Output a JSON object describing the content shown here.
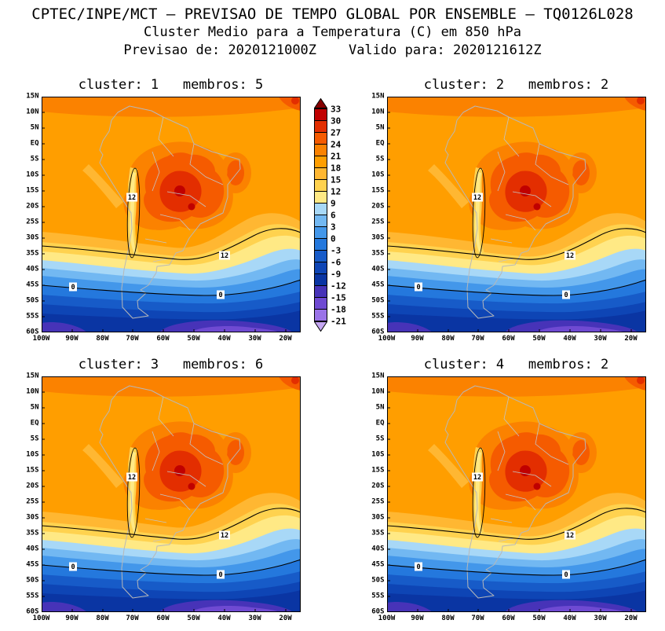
{
  "header": {
    "line1": "CPTEC/INPE/MCT — PREVISAO DE TEMPO GLOBAL POR ENSEMBLE — TQ0126L028",
    "line2": "Cluster Medio para a Temperatura (C) em 850 hPa",
    "line3": "Previsao de: 2020121000Z    Valido para: 2020121612Z"
  },
  "panels": [
    {
      "title": "cluster: 1   membros: 5"
    },
    {
      "title": "cluster: 2   membros: 2"
    },
    {
      "title": "cluster: 3   membros: 6"
    },
    {
      "title": "cluster: 4   membros: 2"
    }
  ],
  "axes": {
    "lat_ticks": [
      "15N",
      "10N",
      "5N",
      "EQ",
      "5S",
      "10S",
      "15S",
      "20S",
      "25S",
      "30S",
      "35S",
      "40S",
      "45S",
      "50S",
      "55S",
      "60S"
    ],
    "lon_ticks": [
      "100W",
      "90W",
      "80W",
      "70W",
      "60W",
      "50W",
      "40W",
      "30W",
      "20W"
    ]
  },
  "colorbar": {
    "labels": [
      "33",
      "30",
      "27",
      "24",
      "21",
      "18",
      "15",
      "12",
      "9",
      "6",
      "3",
      "0",
      "-3",
      "-6",
      "-9",
      "-12",
      "-15",
      "-18",
      "-21"
    ],
    "band_colors": [
      "#c00000",
      "#e32e00",
      "#f55b00",
      "#fb8200",
      "#ff9e00",
      "#ffb732",
      "#ffd24f",
      "#ffe985",
      "#a8d8f7",
      "#72b8f2",
      "#4397ea",
      "#2478dd",
      "#175bc8",
      "#0e45b5",
      "#0a35a3",
      "#4733b8",
      "#6f4ad2",
      "#9a73e8"
    ],
    "arrow_top_color": "#850000",
    "arrow_bottom_color": "#c4a6f2"
  },
  "contours": {
    "twelve": "12",
    "zero": "0"
  },
  "chart_data": {
    "type": "heatmap",
    "title": "Cluster Medio para a Temperatura (C) em 850 hPa",
    "source_line": "CPTEC/INPE/MCT — PREVISAO DE TEMPO GLOBAL POR ENSEMBLE — TQ0126L028",
    "init_time": "2020121000Z",
    "valid_time": "2020121612Z",
    "variable": "Temperatura",
    "units": "C",
    "level_hPa": 850,
    "panels": [
      {
        "cluster": 1,
        "membros": 5
      },
      {
        "cluster": 2,
        "membros": 2
      },
      {
        "cluster": 3,
        "membros": 6
      },
      {
        "cluster": 4,
        "membros": 2
      }
    ],
    "x_tick_labels": [
      "100W",
      "90W",
      "80W",
      "70W",
      "60W",
      "50W",
      "40W",
      "30W",
      "20W"
    ],
    "y_tick_labels": [
      "15N",
      "10N",
      "5N",
      "EQ",
      "5S",
      "10S",
      "15S",
      "20S",
      "25S",
      "30S",
      "35S",
      "40S",
      "45S",
      "50S",
      "55S",
      "60S"
    ],
    "colorbar_levels": [
      33,
      30,
      27,
      24,
      21,
      18,
      15,
      12,
      9,
      6,
      3,
      0,
      -3,
      -6,
      -9,
      -12,
      -15,
      -18,
      -21
    ],
    "colorbar_band_colors_top_to_bottom": [
      "#c00000",
      "#e32e00",
      "#f55b00",
      "#fb8200",
      "#ff9e00",
      "#ffb732",
      "#ffd24f",
      "#ffe985",
      "#a8d8f7",
      "#72b8f2",
      "#4397ea",
      "#2478dd",
      "#175bc8",
      "#0e45b5",
      "#0a35a3",
      "#4733b8",
      "#6f4ad2",
      "#9a73e8"
    ],
    "above_scale_color": "#850000",
    "below_scale_color": "#c4a6f2",
    "labeled_contours": [
      12,
      0
    ],
    "legend_position": "between top two panels",
    "grid": false,
    "pattern_summary": "All four clusters: warm core of 24-30 C over central South America (~10S-25S, 65W-50W) with small >30 C spots; orange 18-21 C across the tropics; cooler 12 C band around the Andes and along ~33S; 0 C contour near 45-48S; coldest bands below -12 C (purples) south of ~55S."
  }
}
